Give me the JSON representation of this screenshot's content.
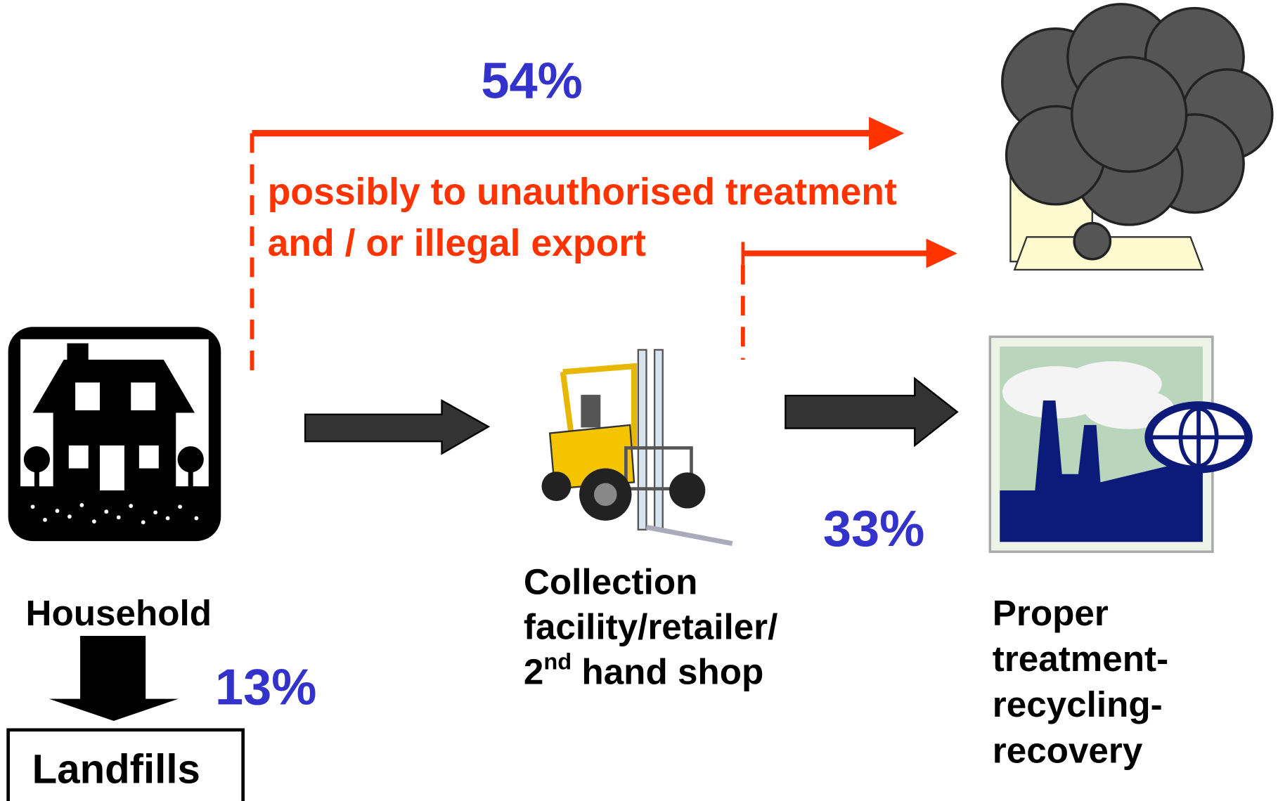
{
  "flows": {
    "unauthorised": {
      "percent": "54%",
      "note_lines": [
        "possibly to unauthorised treatment",
        "and / or illegal export"
      ]
    },
    "landfill": {
      "percent": "13%"
    },
    "proper": {
      "percent": "33%"
    }
  },
  "nodes": {
    "household": {
      "label": "Household"
    },
    "landfills": {
      "label": "Landfills"
    },
    "collection": {
      "lines": [
        "Collection",
        "facility/retailer/"
      ],
      "last_line": {
        "base": "2",
        "sup": "nd",
        "rest": " hand shop"
      }
    },
    "proper": {
      "lines": [
        "Proper",
        "treatment-",
        "recycling-",
        "recovery"
      ]
    }
  }
}
